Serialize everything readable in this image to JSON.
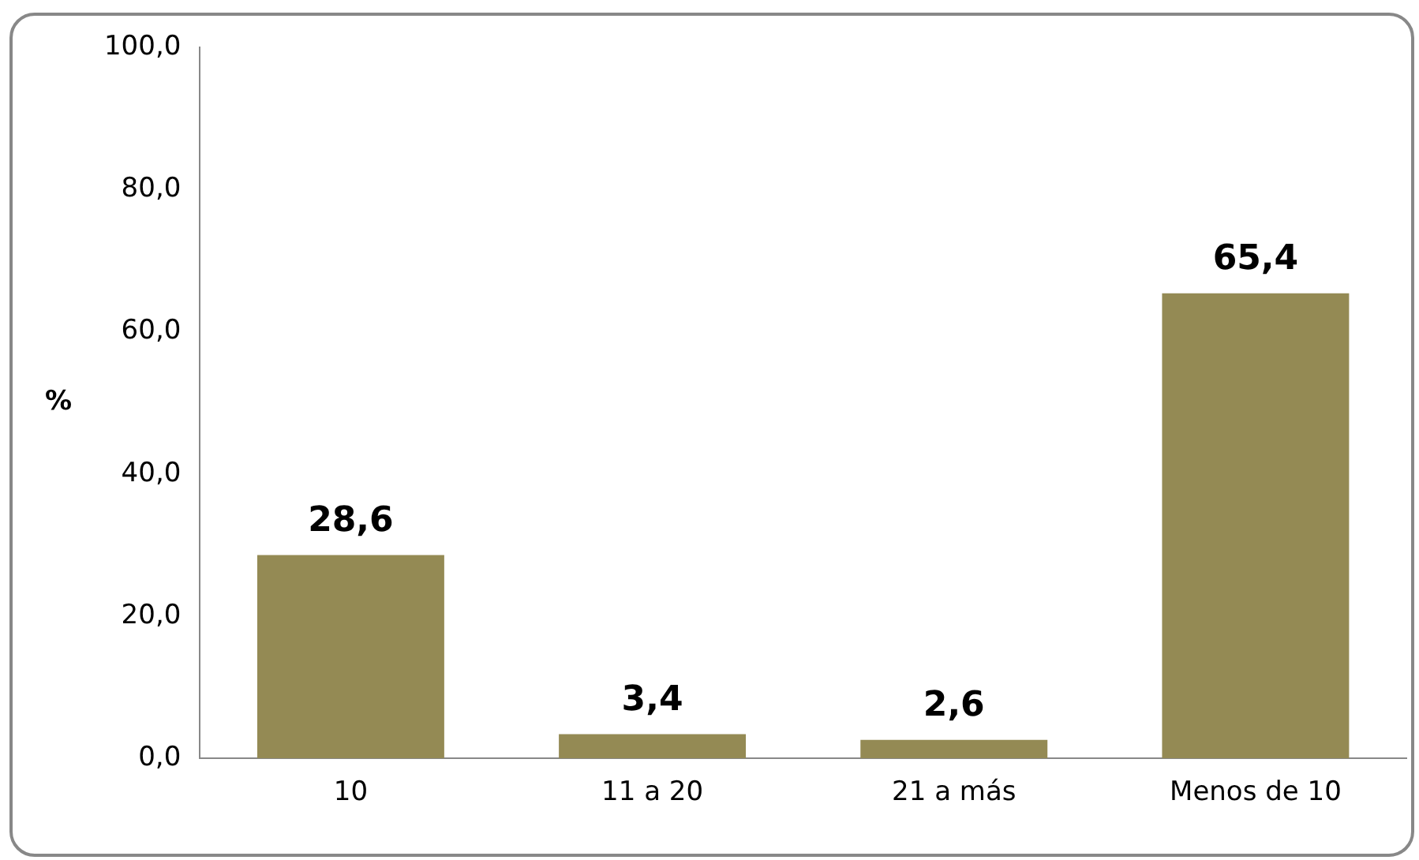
{
  "chart_data": {
    "type": "bar",
    "ylabel": "%",
    "categories": [
      "10",
      "11 a 20",
      "21 a más",
      "Menos de 10"
    ],
    "values": [
      28.6,
      3.4,
      2.6,
      65.4
    ],
    "value_labels": [
      "28,6",
      "3,4",
      "2,6",
      "65,4"
    ],
    "color": "#948a54",
    "ylim": [
      0,
      100
    ],
    "yticks": [
      {
        "value": 0,
        "label": "0,0"
      },
      {
        "value": 20,
        "label": "20,0"
      },
      {
        "value": 40,
        "label": "40,0"
      },
      {
        "value": 60,
        "label": "60,0"
      },
      {
        "value": 80,
        "label": "80,0"
      },
      {
        "value": 100,
        "label": "100,0"
      }
    ],
    "grid": false,
    "legend": false
  }
}
